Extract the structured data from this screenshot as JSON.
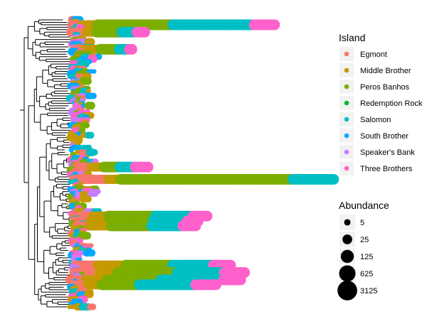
{
  "chart_data": {
    "type": "scatter",
    "subtype": "phylogenetic-tree-with-abundance-points",
    "legend_placement": "right",
    "grid": false,
    "color_legend": {
      "title": "Island",
      "entries": [
        {
          "label": "Egmont",
          "color": "#F8766D"
        },
        {
          "label": "Middle Brother",
          "color": "#C49A00"
        },
        {
          "label": "Peros Banhos",
          "color": "#7CAE00"
        },
        {
          "label": "Redemption Rock",
          "color": "#00BA38"
        },
        {
          "label": "Salomon",
          "color": "#00BFC4"
        },
        {
          "label": "South Brother",
          "color": "#00A9FF"
        },
        {
          "label": "Speaker's Bank",
          "color": "#C77CFF"
        },
        {
          "label": "Three Brothers",
          "color": "#FF61CC"
        }
      ]
    },
    "size_legend": {
      "title": "Abundance",
      "entries": [
        {
          "label": "5",
          "value": 5
        },
        {
          "label": "25",
          "value": 25
        },
        {
          "label": "125",
          "value": 125
        },
        {
          "label": "625",
          "value": 625
        },
        {
          "label": "3125",
          "value": 3125
        }
      ]
    }
  }
}
